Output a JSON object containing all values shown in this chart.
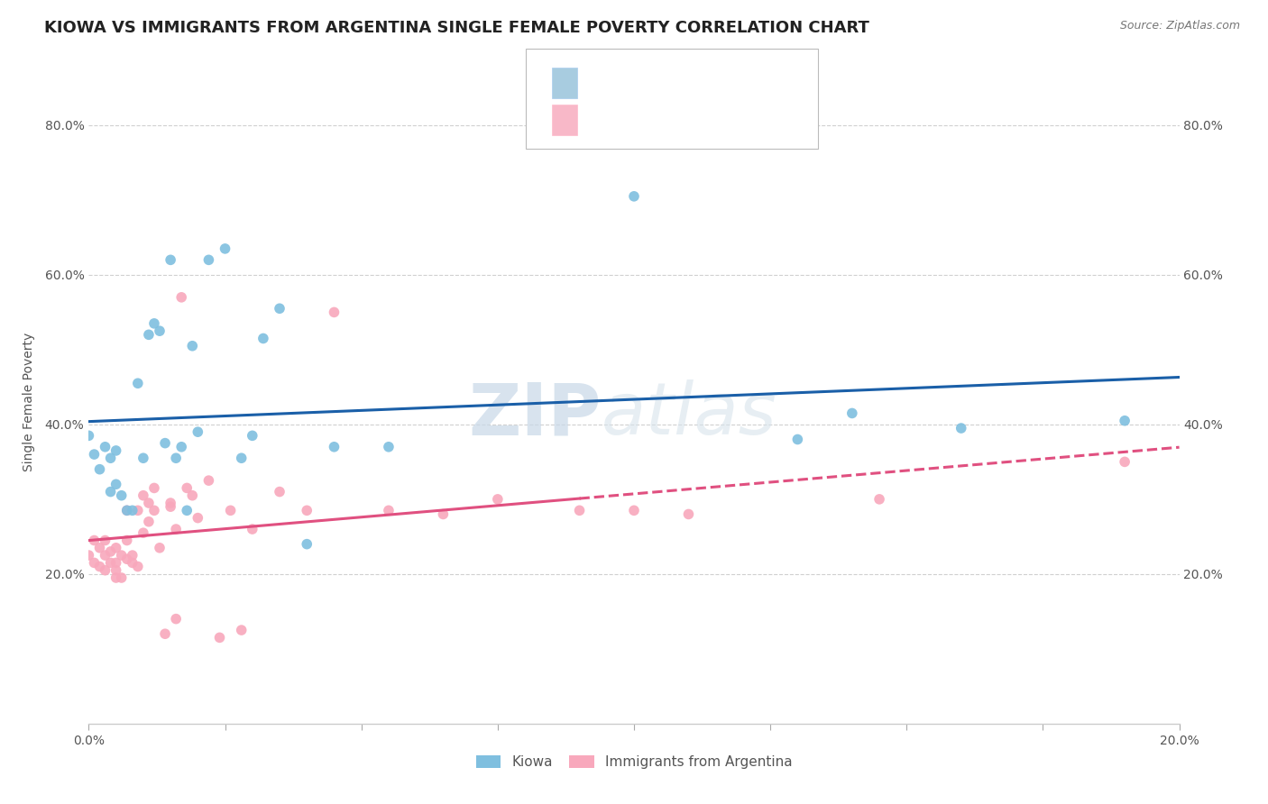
{
  "title": "KIOWA VS IMMIGRANTS FROM ARGENTINA SINGLE FEMALE POVERTY CORRELATION CHART",
  "source": "Source: ZipAtlas.com",
  "ylabel": "Single Female Poverty",
  "xlim": [
    0.0,
    0.2
  ],
  "ylim": [
    0.0,
    0.86
  ],
  "x_tick_vals": [
    0.0,
    0.025,
    0.05,
    0.075,
    0.1,
    0.125,
    0.15,
    0.175,
    0.2
  ],
  "x_tick_labels_sparse": {
    "0.0": "0.0%",
    "0.20": "20.0%"
  },
  "y_tick_vals": [
    0.2,
    0.4,
    0.6,
    0.8
  ],
  "y_tick_labels": [
    "20.0%",
    "40.0%",
    "60.0%",
    "80.0%"
  ],
  "kiowa_scatter_x": [
    0.0,
    0.001,
    0.002,
    0.003,
    0.004,
    0.004,
    0.005,
    0.005,
    0.006,
    0.007,
    0.008,
    0.009,
    0.01,
    0.011,
    0.012,
    0.013,
    0.014,
    0.015,
    0.016,
    0.017,
    0.018,
    0.019,
    0.02,
    0.022,
    0.025,
    0.028,
    0.03,
    0.032,
    0.035,
    0.04,
    0.045,
    0.055,
    0.1,
    0.13,
    0.14,
    0.16,
    0.19
  ],
  "kiowa_scatter_y": [
    0.385,
    0.36,
    0.34,
    0.37,
    0.355,
    0.31,
    0.365,
    0.32,
    0.305,
    0.285,
    0.285,
    0.455,
    0.355,
    0.52,
    0.535,
    0.525,
    0.375,
    0.62,
    0.355,
    0.37,
    0.285,
    0.505,
    0.39,
    0.62,
    0.635,
    0.355,
    0.385,
    0.515,
    0.555,
    0.24,
    0.37,
    0.37,
    0.705,
    0.38,
    0.415,
    0.395,
    0.405
  ],
  "arg_scatter_x": [
    0.0,
    0.001,
    0.001,
    0.002,
    0.002,
    0.003,
    0.003,
    0.003,
    0.004,
    0.004,
    0.005,
    0.005,
    0.005,
    0.005,
    0.006,
    0.006,
    0.007,
    0.007,
    0.007,
    0.008,
    0.008,
    0.009,
    0.009,
    0.01,
    0.01,
    0.011,
    0.011,
    0.012,
    0.012,
    0.013,
    0.014,
    0.015,
    0.015,
    0.016,
    0.016,
    0.017,
    0.018,
    0.019,
    0.02,
    0.022,
    0.024,
    0.026,
    0.028,
    0.03,
    0.035,
    0.04,
    0.045,
    0.055,
    0.065,
    0.075,
    0.09,
    0.1,
    0.11,
    0.145,
    0.19
  ],
  "arg_scatter_y": [
    0.225,
    0.215,
    0.245,
    0.21,
    0.235,
    0.205,
    0.225,
    0.245,
    0.215,
    0.23,
    0.215,
    0.235,
    0.195,
    0.205,
    0.195,
    0.225,
    0.22,
    0.245,
    0.285,
    0.215,
    0.225,
    0.21,
    0.285,
    0.255,
    0.305,
    0.27,
    0.295,
    0.285,
    0.315,
    0.235,
    0.12,
    0.29,
    0.295,
    0.26,
    0.14,
    0.57,
    0.315,
    0.305,
    0.275,
    0.325,
    0.115,
    0.285,
    0.125,
    0.26,
    0.31,
    0.285,
    0.55,
    0.285,
    0.28,
    0.3,
    0.285,
    0.285,
    0.28,
    0.3,
    0.35
  ],
  "kiowa_color": "#7fbfdf",
  "arg_color": "#f8a8bc",
  "kiowa_line_color": "#1a5fa8",
  "arg_line_color": "#e05080",
  "background_color": "#ffffff",
  "grid_color": "#d0d0d0",
  "watermark_zip": "ZIP",
  "watermark_atlas": "atlas",
  "title_fontsize": 13,
  "label_fontsize": 10,
  "tick_fontsize": 10,
  "legend_fontsize": 13,
  "scatter_size": 70
}
